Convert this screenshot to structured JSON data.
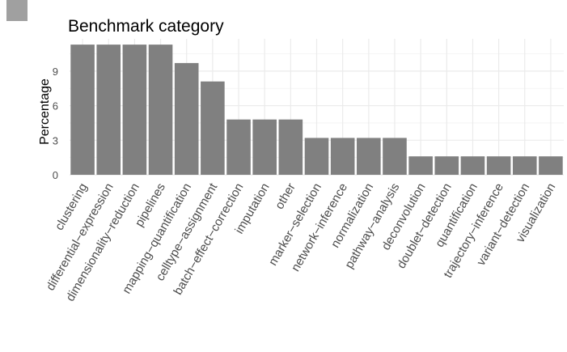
{
  "chart_data": {
    "type": "bar",
    "title": "Benchmark category",
    "xlabel": "",
    "ylabel": "Percentage",
    "ylim": [
      0,
      11.8
    ],
    "yticks": [
      0,
      3,
      6,
      9
    ],
    "grid": true,
    "legend": "top-left",
    "bar_color": "#808080",
    "legend_swatch_color": "#a0a0a0",
    "categories": [
      "clustering",
      "differential−expression",
      "dimensionality−reduction",
      "pipelines",
      "mapping−quantification",
      "celltype−assignment",
      "batch−effect−correction",
      "imputation",
      "other",
      "marker−selection",
      "network−inference",
      "normalization",
      "pathway−analysis",
      "deconvolution",
      "doublet−detection",
      "quantification",
      "trajectory−inference",
      "variant−detection",
      "visualization"
    ],
    "values": [
      11.3,
      11.3,
      11.3,
      11.3,
      9.7,
      8.1,
      4.8,
      4.8,
      4.8,
      3.2,
      3.2,
      3.2,
      3.2,
      1.6,
      1.6,
      1.6,
      1.6,
      1.6,
      1.6
    ]
  }
}
